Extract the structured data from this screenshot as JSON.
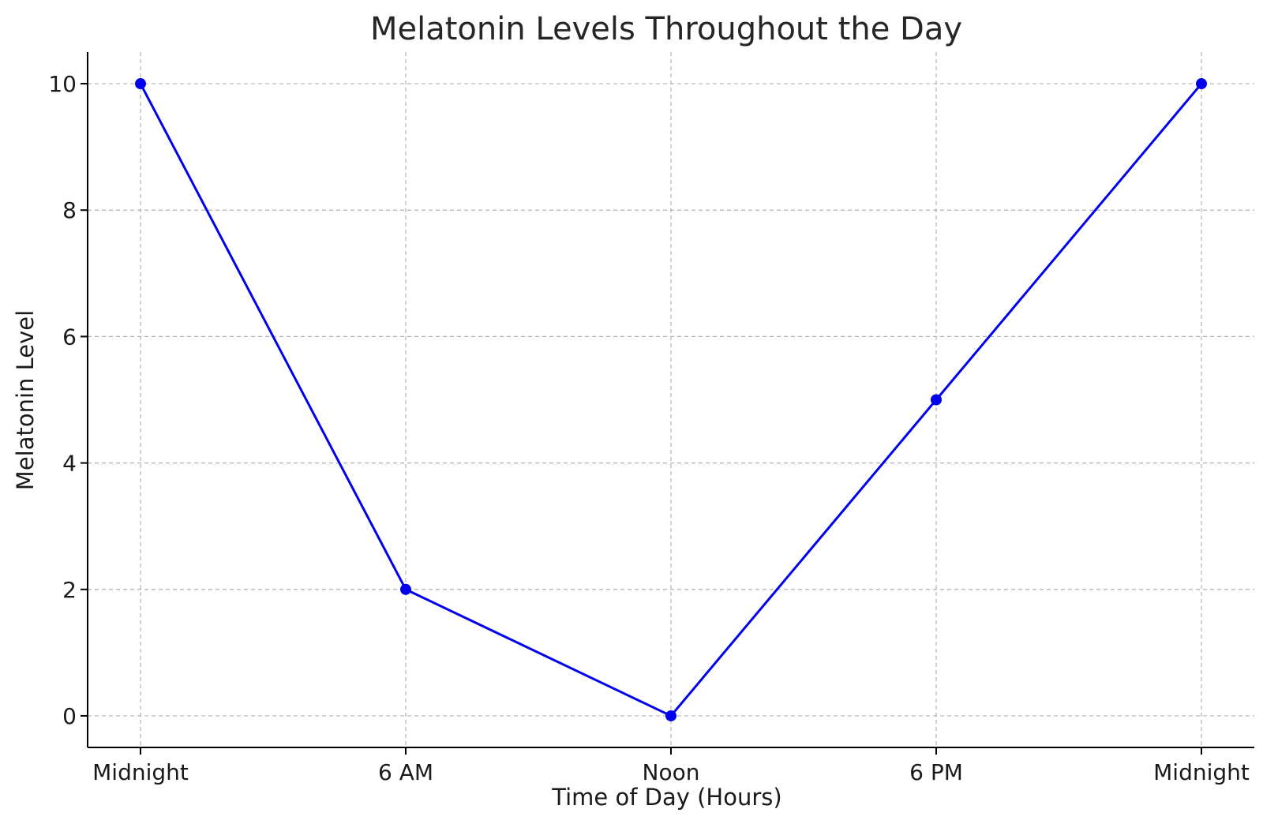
{
  "chart_data": {
    "type": "line",
    "title": "Melatonin Levels Throughout the Day",
    "xlabel": "Time of Day (Hours)",
    "ylabel": "Melatonin Level",
    "categories": [
      "Midnight",
      "6 AM",
      "Noon",
      "6 PM",
      "Midnight"
    ],
    "series": [
      {
        "values": [
          10,
          2,
          0,
          5,
          10
        ],
        "color": "#0000ee",
        "marker": "circle"
      }
    ],
    "yticks": [
      0,
      2,
      4,
      6,
      8,
      10
    ],
    "ylim": [
      -0.5,
      10.5
    ],
    "grid": true,
    "legend": "none"
  }
}
